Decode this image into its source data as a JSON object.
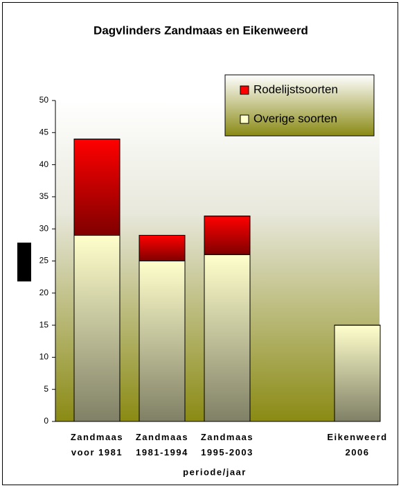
{
  "chart_data": {
    "type": "stacked_bar",
    "title": "Dagvlinders Zandmaas en Eikenweerd",
    "x_label": "periode/jaar",
    "categories": [
      "Zandmaas voor 1981",
      "Zandmaas 1981-1994",
      "Zandmaas 1995-2003",
      null,
      "Eikenweerd 2006"
    ],
    "series": [
      {
        "name": "Overige soorten",
        "color": "#ffffcc",
        "values": [
          29,
          25,
          26,
          null,
          15
        ]
      },
      {
        "name": "Rodelijstsoorten",
        "color": "#ff0000",
        "values": [
          15,
          4,
          6,
          null,
          0
        ]
      }
    ],
    "ylim": [
      0,
      50
    ],
    "yticks": [
      0,
      5,
      10,
      15,
      20,
      25,
      30,
      35,
      40,
      45,
      50
    ],
    "legend": "top-right"
  }
}
